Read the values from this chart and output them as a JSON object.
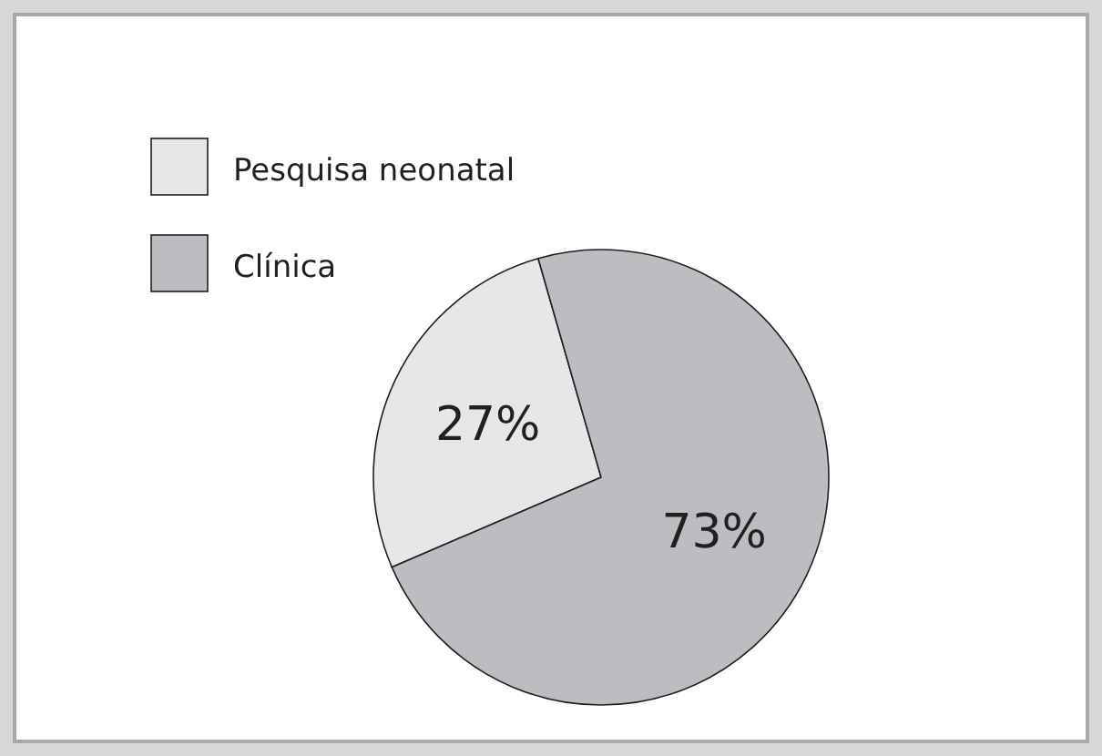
{
  "chart_data": {
    "type": "pie",
    "categories": [
      "Pesquisa neonatal",
      "Clínica"
    ],
    "values": [
      27,
      73
    ],
    "value_labels": [
      "27%",
      "73%"
    ],
    "colors": [
      "#e6e7e8",
      "#bcbdc0"
    ],
    "legend": "top left"
  }
}
